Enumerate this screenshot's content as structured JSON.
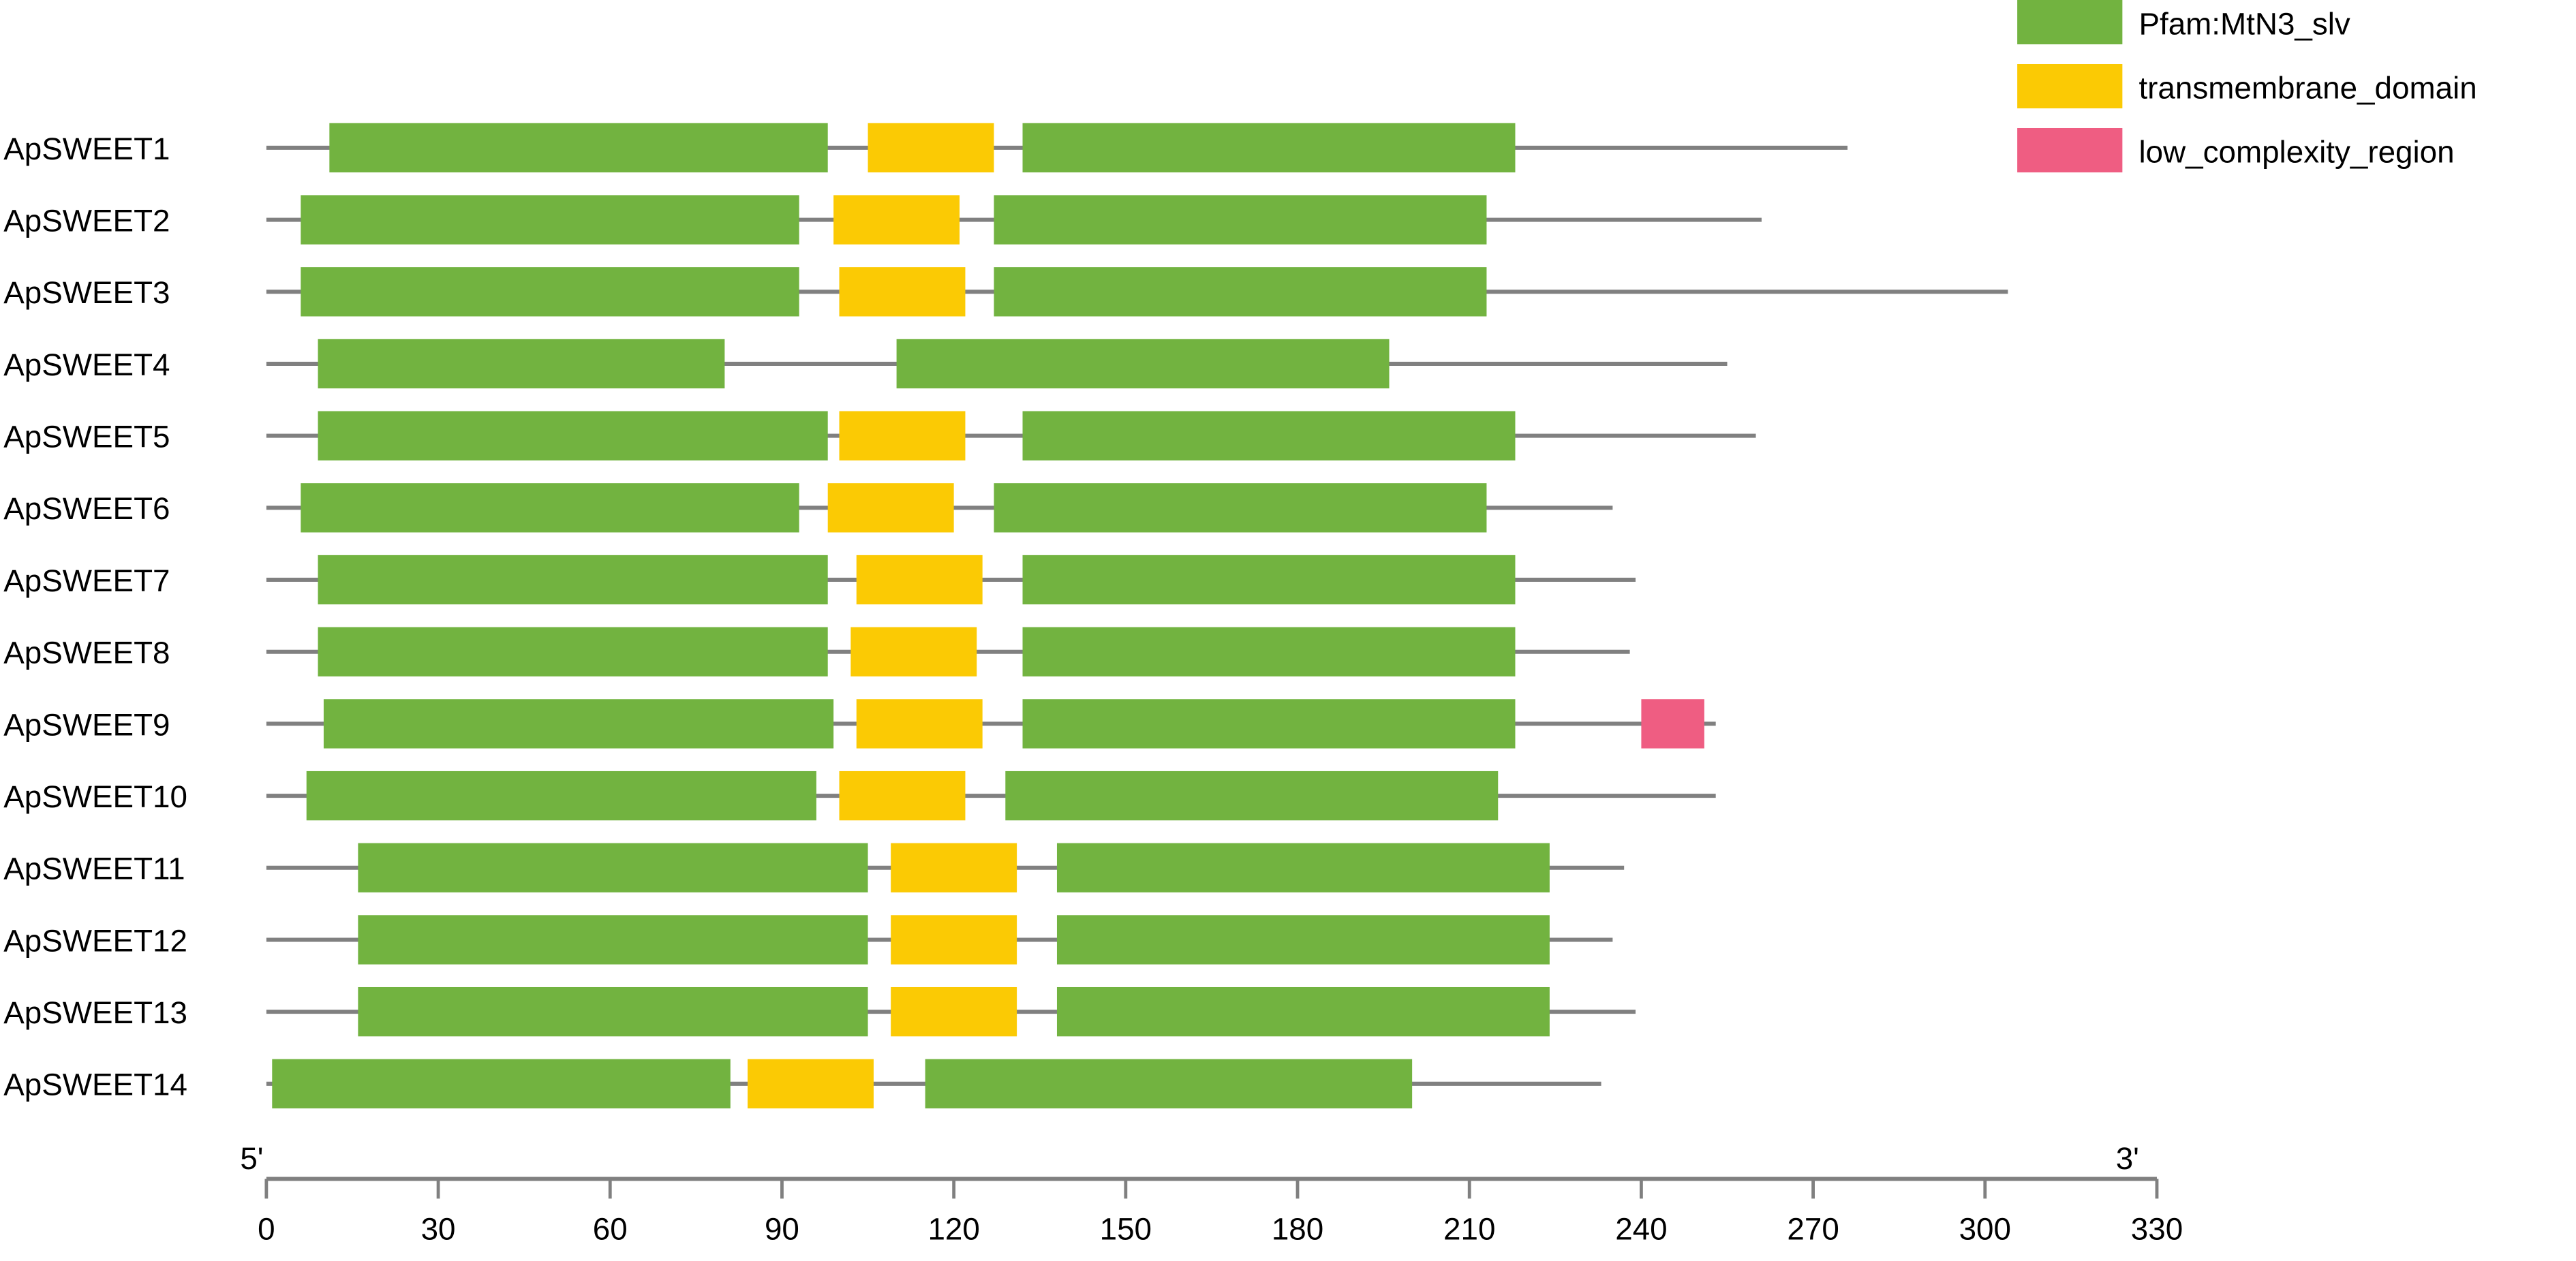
{
  "chart_data": {
    "type": "domain-architecture",
    "xlim": [
      0,
      330
    ],
    "ticks": [
      0,
      30,
      60,
      90,
      120,
      150,
      180,
      210,
      240,
      270,
      300,
      330
    ],
    "axis_end_labels": {
      "left": "5'",
      "right": "3'"
    },
    "legend": [
      {
        "key": "pfam",
        "label": "Pfam:MtN3_slv",
        "color": "#72b340"
      },
      {
        "key": "tm",
        "label": "transmembrane_domain",
        "color": "#fbca04"
      },
      {
        "key": "lcr",
        "label": "low_complexity_region",
        "color": "#ef5d82"
      }
    ],
    "proteins": [
      {
        "name": "ApSWEET1",
        "length": 276,
        "domains": [
          {
            "type": "pfam",
            "start": 11,
            "end": 98
          },
          {
            "type": "tm",
            "start": 105,
            "end": 127
          },
          {
            "type": "pfam",
            "start": 132,
            "end": 218
          }
        ]
      },
      {
        "name": "ApSWEET2",
        "length": 261,
        "domains": [
          {
            "type": "pfam",
            "start": 6,
            "end": 93
          },
          {
            "type": "tm",
            "start": 99,
            "end": 121
          },
          {
            "type": "pfam",
            "start": 127,
            "end": 213
          }
        ]
      },
      {
        "name": "ApSWEET3",
        "length": 304,
        "domains": [
          {
            "type": "pfam",
            "start": 6,
            "end": 93
          },
          {
            "type": "tm",
            "start": 100,
            "end": 122
          },
          {
            "type": "pfam",
            "start": 127,
            "end": 213
          }
        ]
      },
      {
        "name": "ApSWEET4",
        "length": 255,
        "domains": [
          {
            "type": "pfam",
            "start": 9,
            "end": 80
          },
          {
            "type": "pfam",
            "start": 110,
            "end": 196
          }
        ]
      },
      {
        "name": "ApSWEET5",
        "length": 260,
        "domains": [
          {
            "type": "pfam",
            "start": 9,
            "end": 98
          },
          {
            "type": "tm",
            "start": 100,
            "end": 122
          },
          {
            "type": "pfam",
            "start": 132,
            "end": 218
          }
        ]
      },
      {
        "name": "ApSWEET6",
        "length": 235,
        "domains": [
          {
            "type": "pfam",
            "start": 6,
            "end": 93
          },
          {
            "type": "tm",
            "start": 98,
            "end": 120
          },
          {
            "type": "pfam",
            "start": 127,
            "end": 213
          }
        ]
      },
      {
        "name": "ApSWEET7",
        "length": 239,
        "domains": [
          {
            "type": "pfam",
            "start": 9,
            "end": 98
          },
          {
            "type": "tm",
            "start": 103,
            "end": 125
          },
          {
            "type": "pfam",
            "start": 132,
            "end": 218
          }
        ]
      },
      {
        "name": "ApSWEET8",
        "length": 238,
        "domains": [
          {
            "type": "pfam",
            "start": 9,
            "end": 98
          },
          {
            "type": "tm",
            "start": 102,
            "end": 124
          },
          {
            "type": "pfam",
            "start": 132,
            "end": 218
          }
        ]
      },
      {
        "name": "ApSWEET9",
        "length": 253,
        "domains": [
          {
            "type": "pfam",
            "start": 10,
            "end": 99
          },
          {
            "type": "tm",
            "start": 103,
            "end": 125
          },
          {
            "type": "pfam",
            "start": 132,
            "end": 218
          },
          {
            "type": "lcr",
            "start": 240,
            "end": 251
          }
        ]
      },
      {
        "name": "ApSWEET10",
        "length": 253,
        "domains": [
          {
            "type": "pfam",
            "start": 7,
            "end": 96
          },
          {
            "type": "tm",
            "start": 100,
            "end": 122
          },
          {
            "type": "pfam",
            "start": 129,
            "end": 215
          }
        ]
      },
      {
        "name": "ApSWEET11",
        "length": 237,
        "domains": [
          {
            "type": "pfam",
            "start": 16,
            "end": 105
          },
          {
            "type": "tm",
            "start": 109,
            "end": 131
          },
          {
            "type": "pfam",
            "start": 138,
            "end": 224
          }
        ]
      },
      {
        "name": "ApSWEET12",
        "length": 235,
        "domains": [
          {
            "type": "pfam",
            "start": 16,
            "end": 105
          },
          {
            "type": "tm",
            "start": 109,
            "end": 131
          },
          {
            "type": "pfam",
            "start": 138,
            "end": 224
          }
        ]
      },
      {
        "name": "ApSWEET13",
        "length": 239,
        "domains": [
          {
            "type": "pfam",
            "start": 16,
            "end": 105
          },
          {
            "type": "tm",
            "start": 109,
            "end": 131
          },
          {
            "type": "pfam",
            "start": 138,
            "end": 224
          }
        ]
      },
      {
        "name": "ApSWEET14",
        "length": 233,
        "domains": [
          {
            "type": "pfam",
            "start": 1,
            "end": 81
          },
          {
            "type": "tm",
            "start": 84,
            "end": 106
          },
          {
            "type": "pfam",
            "start": 115,
            "end": 200
          }
        ]
      }
    ]
  }
}
